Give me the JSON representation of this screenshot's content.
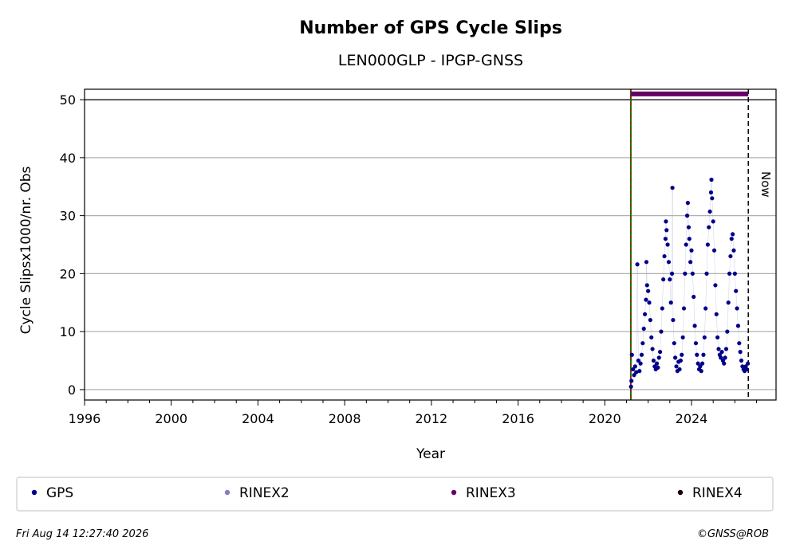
{
  "chart_data": {
    "type": "scatter",
    "title": "Number of GPS Cycle Slips",
    "subtitle": "LEN000GLP - IPGP-GNSS",
    "xlabel": "Year",
    "ylabel": "Cycle Slipsx1000/nr. Obs",
    "xlim": [
      1996,
      2027.9
    ],
    "ylim": [
      -1.8,
      51.8
    ],
    "x_ticks": [
      1996,
      2000,
      2004,
      2008,
      2012,
      2016,
      2020,
      2024
    ],
    "y_ticks": [
      0,
      10,
      20,
      30,
      40,
      50
    ],
    "grid": "y",
    "legend_position": "bottom",
    "legend": [
      {
        "label": "GPS",
        "color": "#00008b"
      },
      {
        "label": "RINEX2",
        "color": "#8080c0"
      },
      {
        "label": "RINEX3",
        "color": "#660066"
      },
      {
        "label": "RINEX4",
        "color": "#1a0010"
      }
    ],
    "reference_line_y": 50,
    "start_marker_x": 2021.2,
    "now_marker_x": 2026.62,
    "now_label": "Now",
    "rinex3_bar": {
      "x_start": 2021.2,
      "x_end": 2026.62,
      "y": 51
    },
    "series": [
      {
        "name": "GPS",
        "color": "#00008b",
        "points": [
          [
            2021.21,
            0.5
          ],
          [
            2021.23,
            1.5
          ],
          [
            2021.25,
            6.0
          ],
          [
            2021.3,
            3.5
          ],
          [
            2021.35,
            2.5
          ],
          [
            2021.4,
            4.0
          ],
          [
            2021.45,
            3.0
          ],
          [
            2021.5,
            21.6
          ],
          [
            2021.55,
            5.0
          ],
          [
            2021.6,
            3.2
          ],
          [
            2021.65,
            4.5
          ],
          [
            2021.7,
            6.0
          ],
          [
            2021.75,
            8.0
          ],
          [
            2021.8,
            10.5
          ],
          [
            2021.85,
            13.0
          ],
          [
            2021.9,
            15.5
          ],
          [
            2021.92,
            22.0
          ],
          [
            2021.95,
            18.0
          ],
          [
            2022.0,
            17.0
          ],
          [
            2022.05,
            15.0
          ],
          [
            2022.1,
            12.0
          ],
          [
            2022.15,
            9.0
          ],
          [
            2022.2,
            7.0
          ],
          [
            2022.25,
            5.0
          ],
          [
            2022.3,
            4.0
          ],
          [
            2022.35,
            3.5
          ],
          [
            2022.4,
            4.5
          ],
          [
            2022.45,
            3.8
          ],
          [
            2022.5,
            5.5
          ],
          [
            2022.55,
            6.5
          ],
          [
            2022.6,
            10.0
          ],
          [
            2022.65,
            14.0
          ],
          [
            2022.7,
            19.0
          ],
          [
            2022.75,
            23.0
          ],
          [
            2022.8,
            26.0
          ],
          [
            2022.82,
            29.0
          ],
          [
            2022.85,
            27.5
          ],
          [
            2022.9,
            25.0
          ],
          [
            2022.95,
            22.0
          ],
          [
            2023.0,
            19.0
          ],
          [
            2023.05,
            15.0
          ],
          [
            2023.1,
            20.0
          ],
          [
            2023.12,
            34.8
          ],
          [
            2023.15,
            12.0
          ],
          [
            2023.2,
            8.0
          ],
          [
            2023.25,
            5.5
          ],
          [
            2023.3,
            4.0
          ],
          [
            2023.35,
            3.2
          ],
          [
            2023.4,
            4.8
          ],
          [
            2023.45,
            3.5
          ],
          [
            2023.5,
            5.0
          ],
          [
            2023.55,
            6.0
          ],
          [
            2023.6,
            9.0
          ],
          [
            2023.65,
            14.0
          ],
          [
            2023.7,
            20.0
          ],
          [
            2023.75,
            25.0
          ],
          [
            2023.8,
            30.0
          ],
          [
            2023.83,
            32.2
          ],
          [
            2023.87,
            28.0
          ],
          [
            2023.9,
            26.0
          ],
          [
            2023.95,
            22.0
          ],
          [
            2024.0,
            24.0
          ],
          [
            2024.05,
            20.0
          ],
          [
            2024.1,
            16.0
          ],
          [
            2024.15,
            11.0
          ],
          [
            2024.2,
            8.0
          ],
          [
            2024.25,
            6.0
          ],
          [
            2024.3,
            4.5
          ],
          [
            2024.35,
            3.5
          ],
          [
            2024.4,
            4.0
          ],
          [
            2024.45,
            3.2
          ],
          [
            2024.5,
            4.5
          ],
          [
            2024.55,
            6.0
          ],
          [
            2024.6,
            9.0
          ],
          [
            2024.65,
            14.0
          ],
          [
            2024.7,
            20.0
          ],
          [
            2024.75,
            25.0
          ],
          [
            2024.8,
            28.0
          ],
          [
            2024.85,
            30.7
          ],
          [
            2024.9,
            34.0
          ],
          [
            2024.92,
            36.2
          ],
          [
            2024.95,
            33.0
          ],
          [
            2025.0,
            29.0
          ],
          [
            2025.05,
            24.0
          ],
          [
            2025.1,
            18.0
          ],
          [
            2025.15,
            13.0
          ],
          [
            2025.2,
            9.0
          ],
          [
            2025.25,
            7.0
          ],
          [
            2025.3,
            6.0
          ],
          [
            2025.35,
            5.5
          ],
          [
            2025.4,
            6.5
          ],
          [
            2025.45,
            5.0
          ],
          [
            2025.5,
            4.5
          ],
          [
            2025.55,
            5.5
          ],
          [
            2025.6,
            7.0
          ],
          [
            2025.65,
            10.0
          ],
          [
            2025.7,
            15.0
          ],
          [
            2025.75,
            20.0
          ],
          [
            2025.8,
            23.0
          ],
          [
            2025.85,
            26.0
          ],
          [
            2025.9,
            26.8
          ],
          [
            2025.95,
            24.0
          ],
          [
            2026.0,
            20.0
          ],
          [
            2026.05,
            17.0
          ],
          [
            2026.1,
            14.0
          ],
          [
            2026.15,
            11.0
          ],
          [
            2026.2,
            8.0
          ],
          [
            2026.25,
            6.5
          ],
          [
            2026.3,
            5.0
          ],
          [
            2026.35,
            4.0
          ],
          [
            2026.4,
            3.5
          ],
          [
            2026.45,
            3.2
          ],
          [
            2026.5,
            4.0
          ],
          [
            2026.55,
            3.5
          ],
          [
            2026.6,
            4.5
          ]
        ]
      }
    ]
  },
  "footer": {
    "timestamp": "Fri Aug 14 12:27:40 2026",
    "credit": "©GNSS@ROB"
  }
}
